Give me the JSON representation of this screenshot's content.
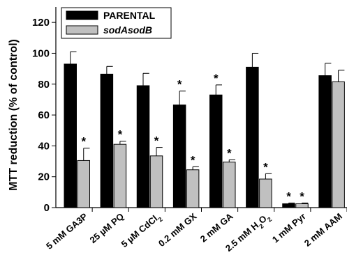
{
  "chart_data": {
    "type": "bar",
    "title": "",
    "xlabel": "",
    "ylabel": "MTT reduction (% of control)",
    "ylim": [
      0,
      130
    ],
    "yticks": [
      0,
      20,
      40,
      60,
      80,
      100,
      120
    ],
    "grid": false,
    "legend_position": "top-left",
    "categories": [
      {
        "pre": "5 mM GA3P",
        "sub": "",
        "post": ""
      },
      {
        "pre": "25 µM PQ",
        "sub": "",
        "post": ""
      },
      {
        "pre": "5 µM CdCl",
        "sub": "2",
        "post": ""
      },
      {
        "pre": "0.2 mM GX",
        "sub": "",
        "post": ""
      },
      {
        "pre": "2 mM GA",
        "sub": "",
        "post": ""
      },
      {
        "pre": "2.5 mM H",
        "sub": "2",
        "post": "O",
        "sub2": "2"
      },
      {
        "pre": "1 mM Pyr",
        "sub": "",
        "post": ""
      },
      {
        "pre": "2 mM AAM",
        "sub": "",
        "post": ""
      }
    ],
    "series": [
      {
        "name": "PARENTAL",
        "color": "#000000",
        "values": [
          93,
          86.5,
          79,
          66.5,
          73,
          91,
          2.5,
          85.5
        ],
        "errors": [
          8,
          5,
          8,
          9,
          6.5,
          9,
          0.5,
          8
        ],
        "significant": [
          false,
          false,
          false,
          true,
          true,
          false,
          true,
          false
        ]
      },
      {
        "name": "sodAsodB",
        "color": "#c0c0c0",
        "values": [
          30.5,
          41,
          33.5,
          24.5,
          29.5,
          18.5,
          2.5,
          81.5
        ],
        "errors": [
          8,
          2,
          5.5,
          2,
          1.5,
          3.5,
          0.5,
          7.5
        ],
        "significant": [
          true,
          true,
          true,
          true,
          true,
          true,
          true,
          false
        ]
      }
    ],
    "significance_marker": "*"
  }
}
